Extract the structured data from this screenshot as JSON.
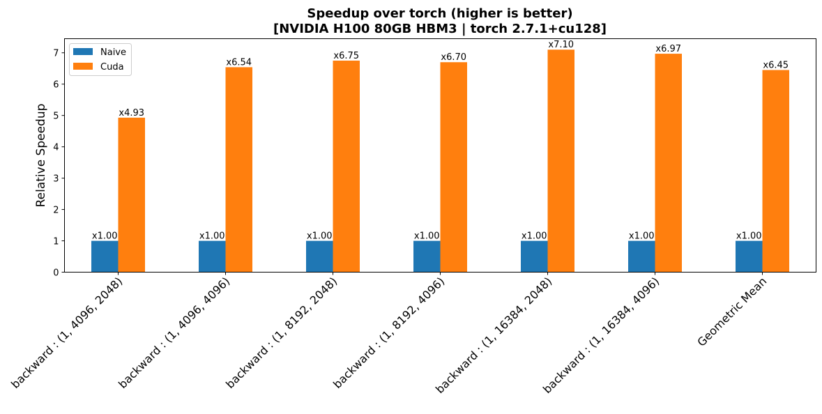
{
  "chart_data": {
    "type": "bar",
    "title": "Speedup over torch (higher is better)",
    "subtitle": "[NVIDIA H100 80GB HBM3 | torch 2.7.1+cu128]",
    "xlabel": "",
    "ylabel": "Relative Speedup",
    "ylim": [
      0,
      7.45
    ],
    "yticks": [
      0,
      1,
      2,
      3,
      4,
      5,
      6,
      7
    ],
    "grid": false,
    "legend_position": "top-left",
    "categories": [
      "backward : (1, 4096, 2048)",
      "backward : (1, 4096, 4096)",
      "backward : (1, 8192, 2048)",
      "backward : (1, 8192, 4096)",
      "backward : (1, 16384, 2048)",
      "backward : (1, 16384, 4096)",
      "Geometric Mean"
    ],
    "series": [
      {
        "name": "Naive",
        "color": "#1f77b4",
        "values": [
          1.0,
          1.0,
          1.0,
          1.0,
          1.0,
          1.0,
          1.0
        ],
        "labels": [
          "x1.00",
          "x1.00",
          "x1.00",
          "x1.00",
          "x1.00",
          "x1.00",
          "x1.00"
        ]
      },
      {
        "name": "Cuda",
        "color": "#ff7f0e",
        "values": [
          4.93,
          6.54,
          6.75,
          6.7,
          7.1,
          6.97,
          6.45
        ],
        "labels": [
          "x4.93",
          "x6.54",
          "x6.75",
          "x6.70",
          "x7.10",
          "x6.97",
          "x6.45"
        ]
      }
    ]
  }
}
